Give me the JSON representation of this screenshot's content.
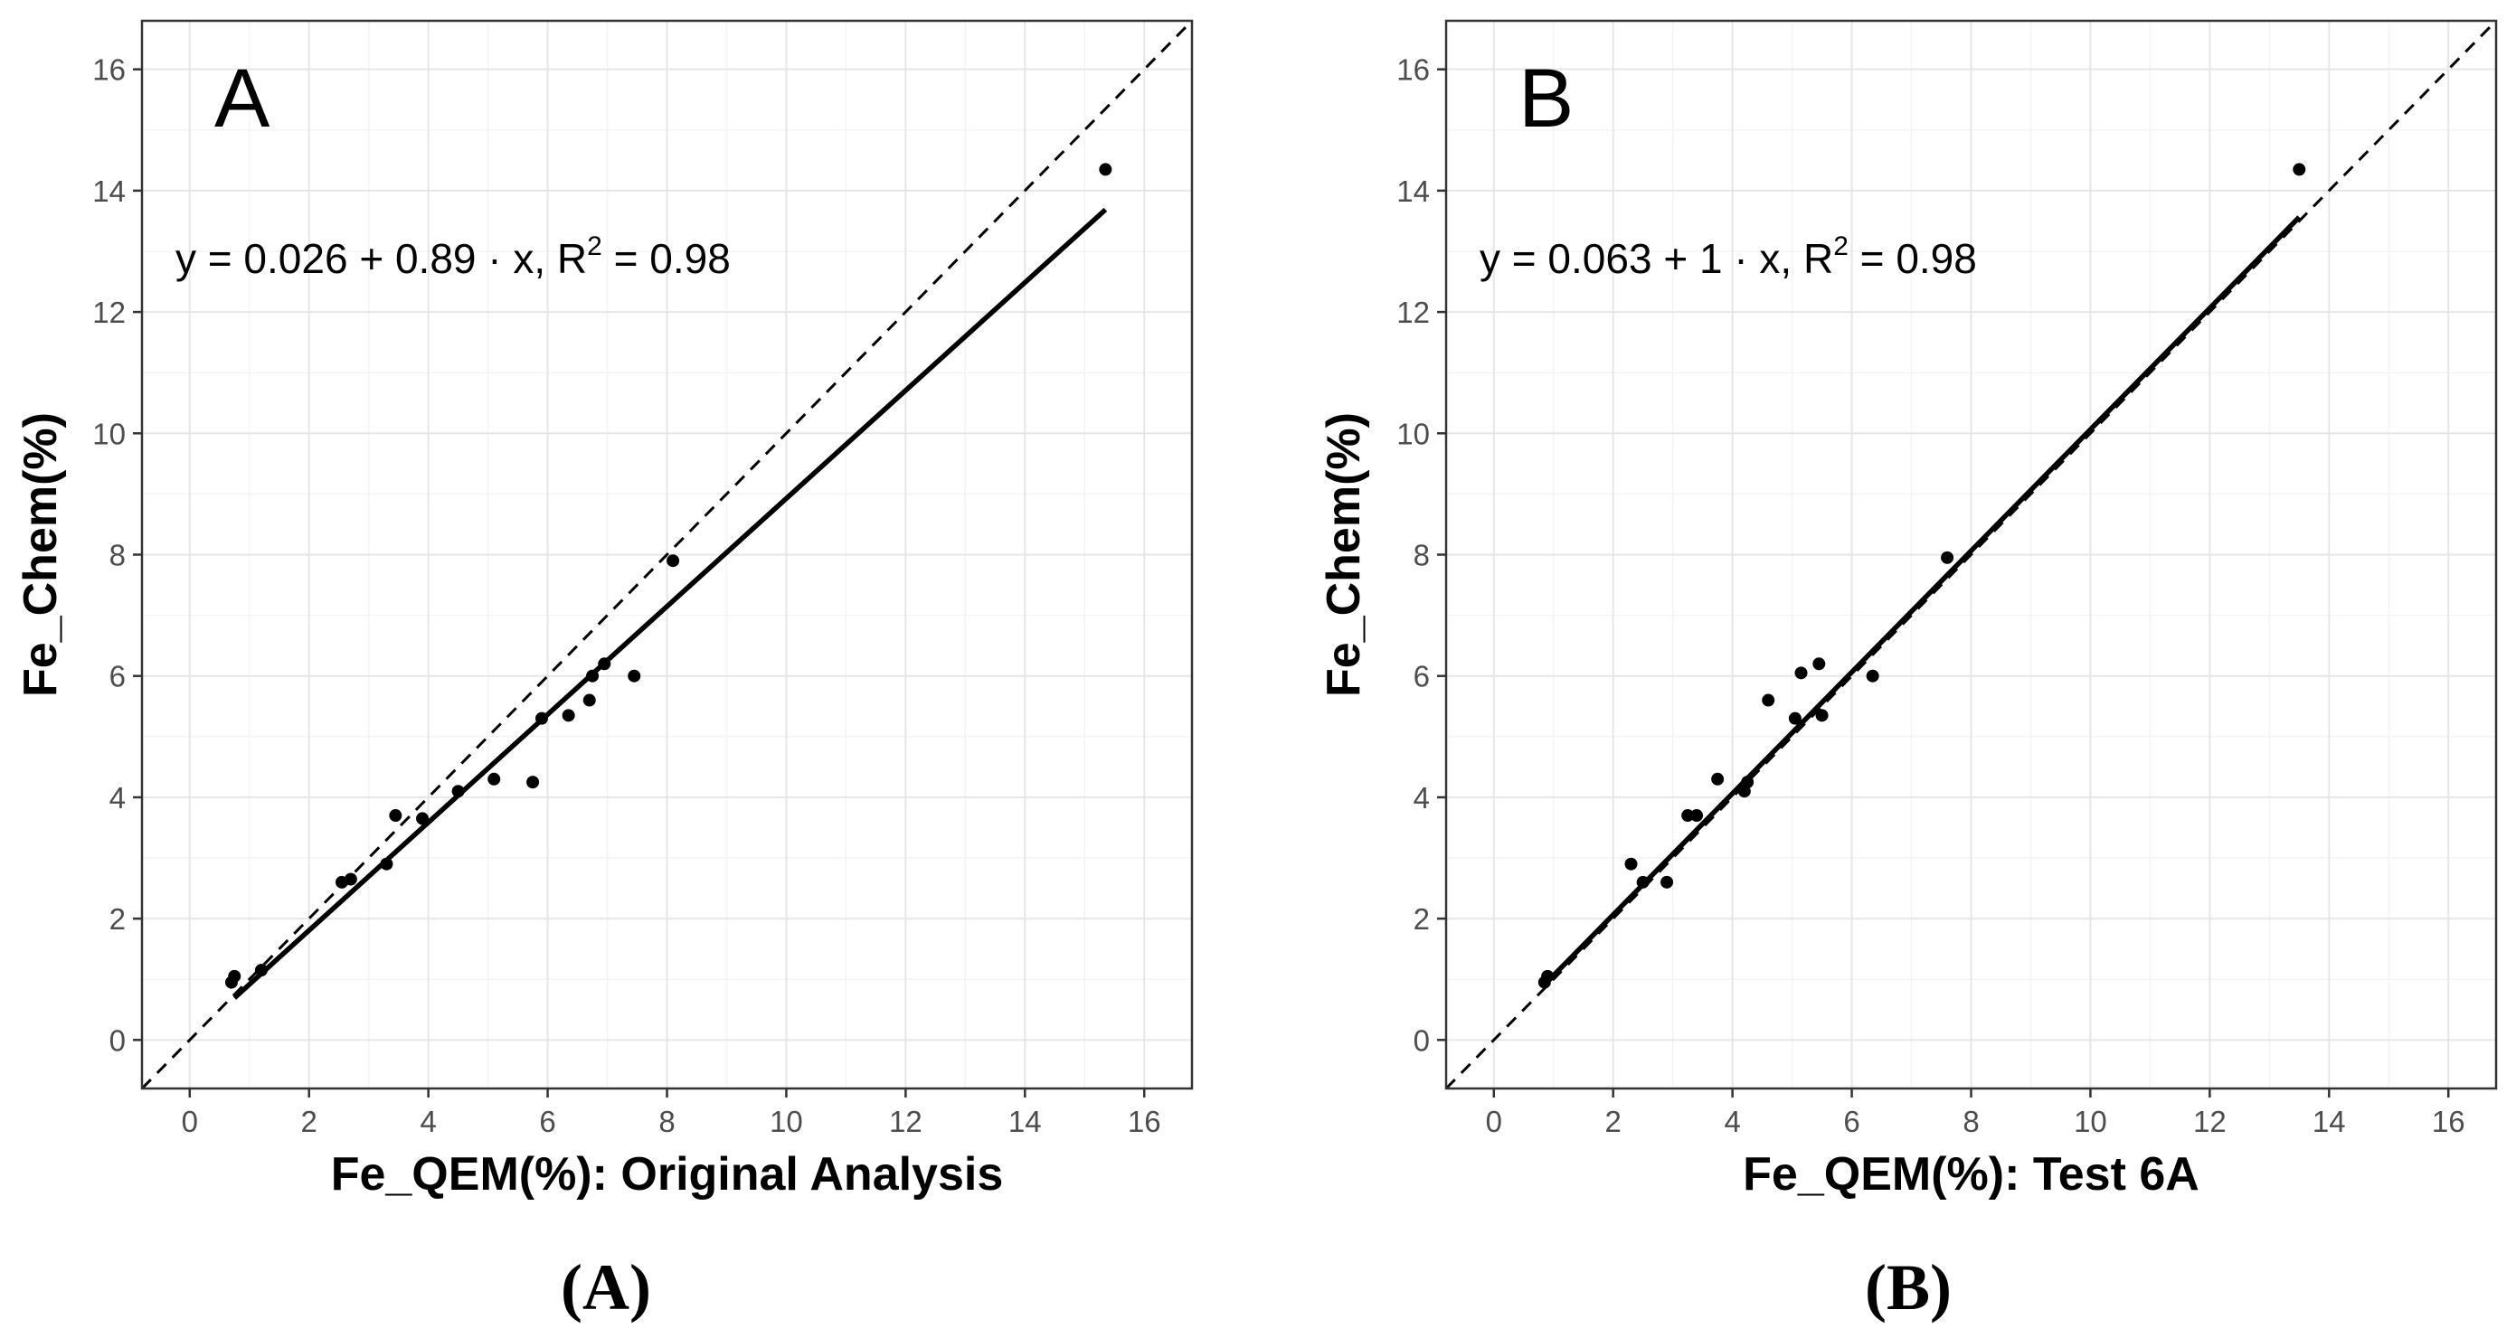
{
  "chart_data": [
    {
      "type": "scatter",
      "panel_letter": "A",
      "caption": "(A)",
      "xlabel": "Fe_QEM(%): Original Analysis",
      "ylabel": "Fe_Chem(%)",
      "xlim": [
        -0.8,
        16.8
      ],
      "ylim": [
        -0.8,
        16.8
      ],
      "ticks": [
        0,
        2,
        4,
        6,
        8,
        10,
        12,
        14,
        16
      ],
      "tick_labels": [
        "0",
        "2",
        "4",
        "6",
        "8",
        "10",
        "12",
        "14",
        "16"
      ],
      "equation": {
        "lhs": "y = 0.026 + 0.89 · x,  R",
        "sup": "2",
        "rhs": " = 0.98"
      },
      "fit": {
        "intercept": 0.026,
        "slope": 0.89,
        "x_range": [
          0.75,
          15.35
        ]
      },
      "reference_line": "y = x",
      "points": [
        [
          0.7,
          0.95
        ],
        [
          0.75,
          1.05
        ],
        [
          1.2,
          1.15
        ],
        [
          2.55,
          2.6
        ],
        [
          2.7,
          2.65
        ],
        [
          3.3,
          2.9
        ],
        [
          3.45,
          3.7
        ],
        [
          3.9,
          3.65
        ],
        [
          4.5,
          4.1
        ],
        [
          5.1,
          4.3
        ],
        [
          5.75,
          4.25
        ],
        [
          5.9,
          5.3
        ],
        [
          6.35,
          5.35
        ],
        [
          6.7,
          5.6
        ],
        [
          6.75,
          6.0
        ],
        [
          6.95,
          6.2
        ],
        [
          7.45,
          6.0
        ],
        [
          8.1,
          7.9
        ],
        [
          15.35,
          14.35
        ]
      ]
    },
    {
      "type": "scatter",
      "panel_letter": "B",
      "caption": "(B)",
      "xlabel": "Fe_QEM(%): Test 6A",
      "ylabel": "Fe_Chem(%)",
      "xlim": [
        -0.8,
        16.8
      ],
      "ylim": [
        -0.8,
        16.8
      ],
      "ticks": [
        0,
        2,
        4,
        6,
        8,
        10,
        12,
        14,
        16
      ],
      "tick_labels": [
        "0",
        "2",
        "4",
        "6",
        "8",
        "10",
        "12",
        "14",
        "16"
      ],
      "equation": {
        "lhs": "y = 0.063 + 1 · x,  R",
        "sup": "2",
        "rhs": " = 0.98"
      },
      "fit": {
        "intercept": 0.063,
        "slope": 1.0,
        "x_range": [
          0.85,
          13.5
        ]
      },
      "reference_line": "y = x",
      "points": [
        [
          0.85,
          0.95
        ],
        [
          0.9,
          1.05
        ],
        [
          2.3,
          2.9
        ],
        [
          2.5,
          2.6
        ],
        [
          2.9,
          2.6
        ],
        [
          3.25,
          3.7
        ],
        [
          3.4,
          3.7
        ],
        [
          3.75,
          4.3
        ],
        [
          4.2,
          4.1
        ],
        [
          4.25,
          4.25
        ],
        [
          4.6,
          5.6
        ],
        [
          5.05,
          5.3
        ],
        [
          5.15,
          6.05
        ],
        [
          5.45,
          6.2
        ],
        [
          5.5,
          5.35
        ],
        [
          6.35,
          6.0
        ],
        [
          7.6,
          7.95
        ],
        [
          13.5,
          14.35
        ]
      ]
    }
  ]
}
